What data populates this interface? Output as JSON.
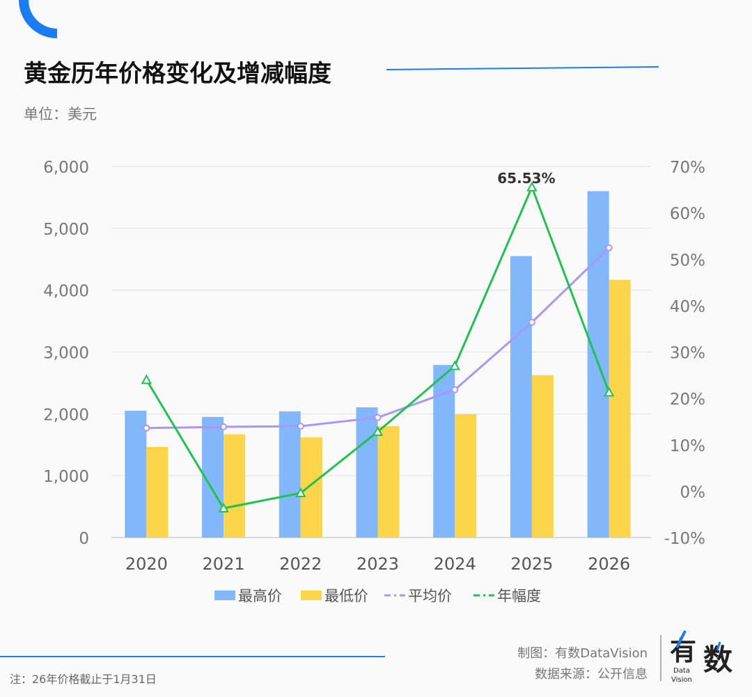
{
  "header": {
    "title": "黄金历年价格变化及增减幅度",
    "unit": "单位：美元"
  },
  "footer": {
    "note": "注：26年价格截止于1月31日",
    "credit": "制图：有数DataVision",
    "source": "数据来源：公开信息",
    "logo_text": "有数 Data Vision"
  },
  "colors": {
    "accent": "#1a7cf2",
    "high": "#82b8fb",
    "low": "#fdd54b",
    "avg": "#a996f5",
    "amp": "#1fc24f"
  },
  "chart_data": {
    "type": "bar",
    "categories": [
      "2020",
      "2021",
      "2022",
      "2023",
      "2024",
      "2025",
      "2026"
    ],
    "series": [
      {
        "name": "最高价",
        "type": "bar",
        "axis": "left",
        "values": [
          2050,
          1950,
          2040,
          2105,
          2790,
          4550,
          5600
        ]
      },
      {
        "name": "最低价",
        "type": "bar",
        "axis": "left",
        "values": [
          1465,
          1670,
          1620,
          1800,
          1995,
          2625,
          4165
        ]
      },
      {
        "name": "平均价",
        "type": "line",
        "axis": "left",
        "values": [
          1770,
          1790,
          1800,
          1940,
          2390,
          3480,
          4685
        ]
      },
      {
        "name": "年幅度",
        "type": "line",
        "axis": "right",
        "unit": "%",
        "values": [
          24.0,
          -3.7,
          -0.4,
          12.8,
          27.0,
          65.53,
          21.3
        ]
      }
    ],
    "annotations": [
      {
        "category": "2025",
        "series": "年幅度",
        "label": "65.53%"
      }
    ],
    "y_left": {
      "ylim": [
        0,
        6000
      ],
      "ticks": [
        "0",
        "1,000",
        "2,000",
        "3,000",
        "4,000",
        "5,000",
        "6,000"
      ]
    },
    "y_right": {
      "ylim": [
        -10,
        70
      ],
      "ticks": [
        "-10%",
        "0%",
        "10%",
        "20%",
        "30%",
        "40%",
        "50%",
        "60%",
        "70%"
      ]
    },
    "grid": true,
    "legend": "bottom"
  }
}
